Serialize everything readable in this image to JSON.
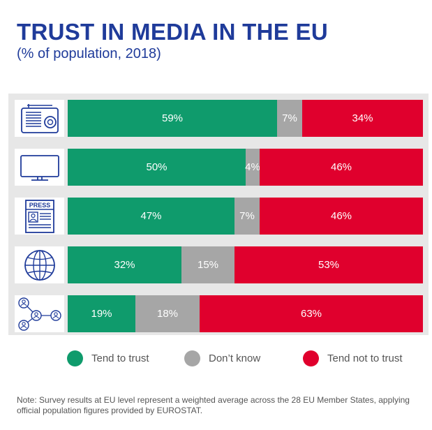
{
  "colors": {
    "trust": "#0f9b6c",
    "dontknow": "#a6a6a6",
    "nottrust": "#e0002d",
    "icon": "#1f3b9a"
  },
  "chart_data": {
    "type": "bar",
    "orientation": "horizontal",
    "stacked": true,
    "title": "TRUST IN MEDIA IN THE EU",
    "subtitle": "(% of population, 2018)",
    "categories": [
      "radio",
      "television",
      "written press",
      "internet",
      "online social networks"
    ],
    "series": [
      {
        "name": "Tend to trust",
        "values": [
          59,
          50,
          47,
          32,
          19
        ]
      },
      {
        "name": "Don't know",
        "values": [
          7,
          4,
          7,
          15,
          18
        ]
      },
      {
        "name": "Tend not to trust",
        "values": [
          34,
          46,
          46,
          53,
          63
        ]
      }
    ],
    "value_suffix": "%",
    "legend_position": "bottom",
    "icons": [
      "radio-icon",
      "tv-icon",
      "press-icon",
      "globe-icon",
      "social-network-icon"
    ],
    "press_icon_label": "PRESS"
  },
  "legend": [
    {
      "label": "Tend to trust"
    },
    {
      "label": "Don’t know"
    },
    {
      "label": "Tend not to trust"
    }
  ],
  "note": "Note: Survey results at EU level represent a weighted average across the 28 EU Member States, applying official population figures provided by EUROSTAT."
}
